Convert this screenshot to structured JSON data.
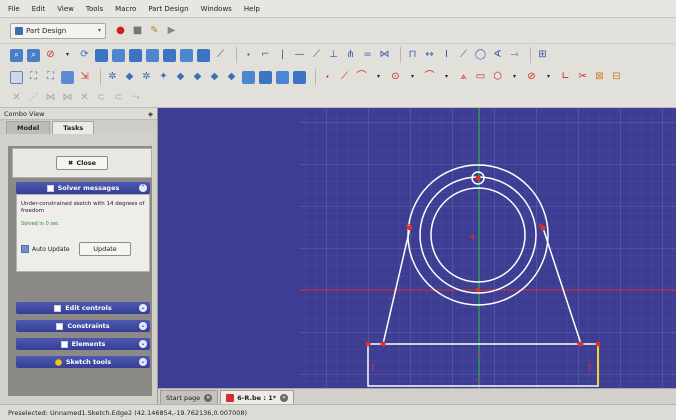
{
  "menu": [
    "File",
    "Edit",
    "View",
    "Tools",
    "Macro",
    "Part Design",
    "Windows",
    "Help"
  ],
  "workbench": {
    "selected": "Part Design"
  },
  "combo": {
    "title": "Combo View",
    "tabs": [
      "Model",
      "Tasks"
    ],
    "active_tab": "Tasks",
    "close_label": "Close",
    "solver_title": "Solver messages",
    "solver_message": "Under-constrained sketch with 14 degrees of freedom",
    "solver_time": "Solved in 0 sec",
    "auto_update_label": "Auto Update",
    "update_label": "Update",
    "sections": [
      "Edit controls",
      "Constraints",
      "Elements",
      "Sketch tools"
    ]
  },
  "doc_tabs": [
    {
      "label": "Start page",
      "active": false
    },
    {
      "label": "6-R.be : 1*",
      "active": true
    }
  ],
  "status": "Preselected: Unnamed1.Sketch.Edge2 (42.146854,-19.762136,0.007008)",
  "colors": {
    "viewport_bg": "#3d3e93",
    "sketch_lines": "#ffffff",
    "constraint_red": "#e0302a",
    "axis_green": "#2fbf4a",
    "axis_red": "#e0302a",
    "panel_header": "#3d47a4"
  },
  "toolbar_icons": {
    "row1": [
      "new-icon",
      "open-icon",
      "save-icon",
      "macro-record-icon",
      "macro-stop-icon",
      "macro-edit-icon",
      "macro-run-icon"
    ],
    "row2": [
      "zoom-fit-icon",
      "zoom-selection-icon",
      "draw-style-icon",
      "view-iso-icon",
      "view-front-icon",
      "view-top-icon",
      "view-right-icon",
      "view-rear-icon",
      "view-bottom-icon",
      "view-left-icon",
      "measure-icon",
      "point-icon",
      "polyline-icon",
      "line-icon",
      "arc-icon",
      "circle-icon",
      "constraint-icon"
    ],
    "row3": [
      "sketch-icon",
      "pad-icon",
      "pocket-icon",
      "revolve-icon",
      "groove-icon",
      "fillet-icon",
      "chamfer-icon",
      "draft-icon",
      "thickness-icon",
      "mirror-icon",
      "pattern-icon",
      "point-icon",
      "line-icon",
      "arc-icon",
      "circle-icon",
      "ellipse-icon",
      "polyline-icon",
      "rectangle-icon",
      "polygon-icon",
      "slot-icon",
      "fillet-icon",
      "trim-icon",
      "external-icon"
    ],
    "row4": [
      "constrain-coincident-icon",
      "constrain-point-on-object-icon",
      "constrain-vertical-icon",
      "constrain-horizontal-icon",
      "constrain-parallel-icon",
      "constrain-perpendicular-icon",
      "constrain-tangent-icon",
      "constrain-equal-icon"
    ]
  }
}
